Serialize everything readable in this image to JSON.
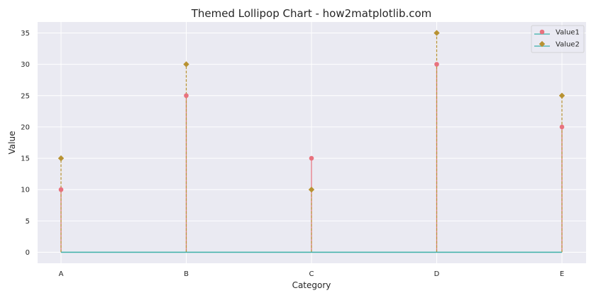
{
  "chart_data": {
    "type": "lollipop",
    "title": "Themed Lollipop Chart - how2matplotlib.com",
    "xlabel": "Category",
    "ylabel": "Value",
    "categories": [
      "A",
      "B",
      "C",
      "D",
      "E"
    ],
    "series": [
      {
        "name": "Value1",
        "values": [
          10,
          25,
          15,
          30,
          20
        ],
        "color": "#E8727E",
        "marker": "circle",
        "stem_style": "solid"
      },
      {
        "name": "Value2",
        "values": [
          15,
          30,
          10,
          35,
          25
        ],
        "color": "#B89232",
        "marker": "diamond",
        "stem_style": "dashed"
      }
    ],
    "baseline": {
      "value": 0,
      "color": "#3BAFA7"
    },
    "ylim": [
      -1.75,
      36.75
    ],
    "yticks": [
      0,
      5,
      10,
      15,
      20,
      25,
      30,
      35
    ],
    "grid": true,
    "legend_position": "top-right",
    "background_color": "#EAEAF2",
    "grid_color": "#FFFFFF"
  }
}
